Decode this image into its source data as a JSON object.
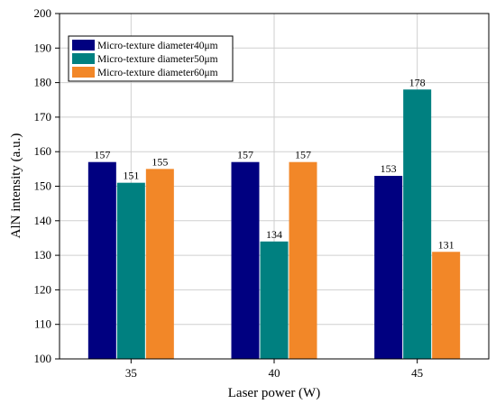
{
  "chart_data": {
    "type": "bar",
    "title": "",
    "xlabel": "Laser power (W)",
    "ylabel": "AlN intensity (a.u.)",
    "categories": [
      "35",
      "40",
      "45"
    ],
    "ylim": [
      100,
      200
    ],
    "yticks": [
      100,
      110,
      120,
      130,
      140,
      150,
      160,
      170,
      180,
      190,
      200
    ],
    "grid": true,
    "legend_position": "top-left",
    "series": [
      {
        "name": "Micro-texture diameter40μm",
        "color": "#000080",
        "values": [
          157,
          157,
          153
        ]
      },
      {
        "name": "Micro-texture diameter50μm",
        "color": "#008080",
        "values": [
          151,
          134,
          178
        ]
      },
      {
        "name": "Micro-texture diameter60μm",
        "color": "#f28728",
        "values": [
          155,
          157,
          131
        ]
      }
    ],
    "data_labels": true
  }
}
